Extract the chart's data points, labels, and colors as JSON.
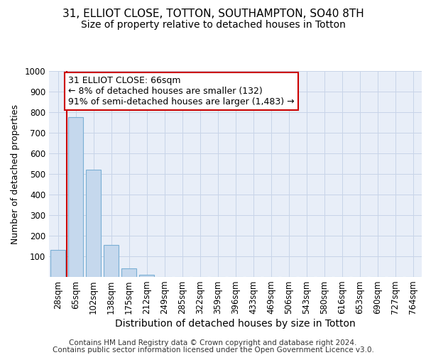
{
  "title1": "31, ELLIOT CLOSE, TOTTON, SOUTHAMPTON, SO40 8TH",
  "title2": "Size of property relative to detached houses in Totton",
  "xlabel": "Distribution of detached houses by size in Totton",
  "ylabel": "Number of detached properties",
  "footer1": "Contains HM Land Registry data © Crown copyright and database right 2024.",
  "footer2": "Contains public sector information licensed under the Open Government Licence v3.0.",
  "categories": [
    "28sqm",
    "65sqm",
    "102sqm",
    "138sqm",
    "175sqm",
    "212sqm",
    "249sqm",
    "285sqm",
    "322sqm",
    "359sqm",
    "396sqm",
    "433sqm",
    "469sqm",
    "506sqm",
    "543sqm",
    "580sqm",
    "616sqm",
    "653sqm",
    "690sqm",
    "727sqm",
    "764sqm"
  ],
  "values": [
    132,
    775,
    522,
    155,
    40,
    12,
    0,
    0,
    0,
    0,
    0,
    0,
    0,
    0,
    0,
    0,
    0,
    0,
    0,
    0,
    0
  ],
  "bar_color": "#c5d8ed",
  "bar_edge_color": "#7aafd4",
  "annotation_text": "31 ELLIOT CLOSE: 66sqm\n← 8% of detached houses are smaller (132)\n91% of semi-detached houses are larger (1,483) →",
  "annotation_box_color": "#ffffff",
  "annotation_box_edge": "#cc0000",
  "vline_color": "#cc0000",
  "ylim": [
    0,
    1000
  ],
  "yticks": [
    0,
    100,
    200,
    300,
    400,
    500,
    600,
    700,
    800,
    900,
    1000
  ],
  "grid_color": "#c8d4e8",
  "bg_color": "#e8eef8",
  "title1_fontsize": 11,
  "title2_fontsize": 10,
  "xlabel_fontsize": 10,
  "ylabel_fontsize": 9,
  "tick_fontsize": 8.5,
  "annot_fontsize": 9,
  "footer_fontsize": 7.5
}
